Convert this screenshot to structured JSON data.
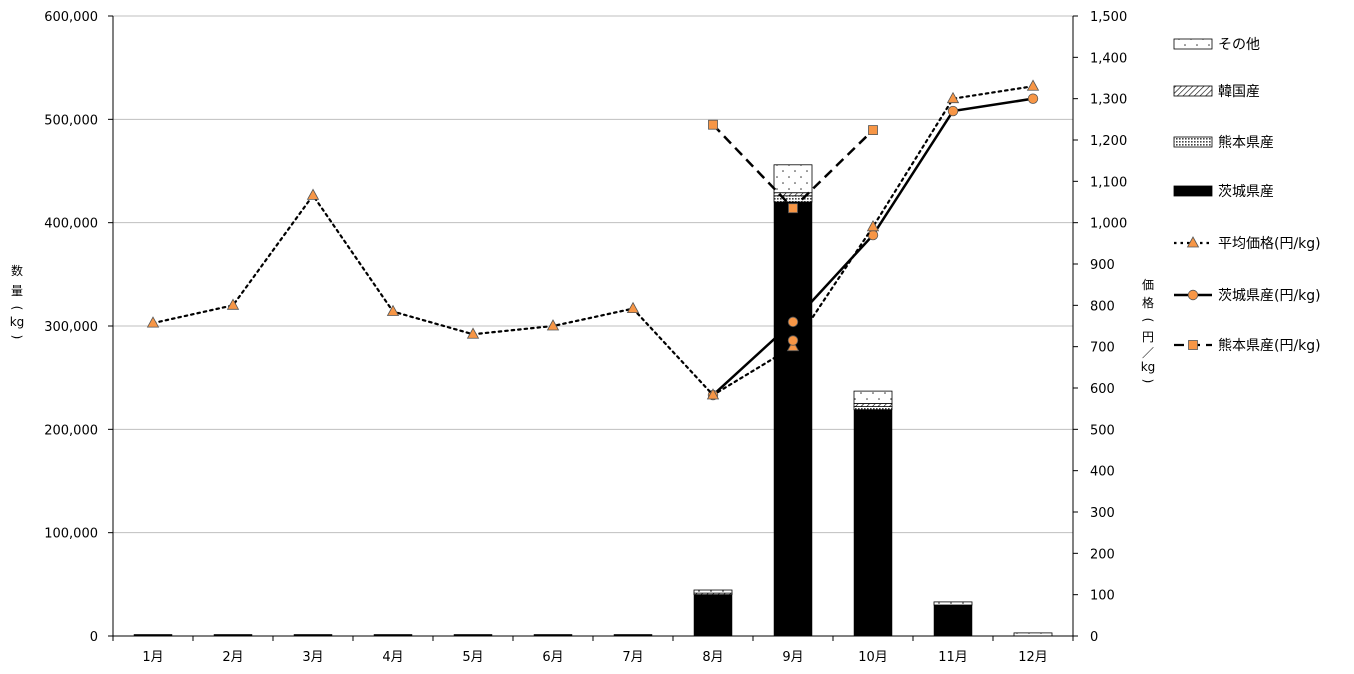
{
  "chart_data": {
    "type": "bar",
    "categories": [
      "1月",
      "2月",
      "3月",
      "4月",
      "5月",
      "6月",
      "7月",
      "8月",
      "9月",
      "10月",
      "11月",
      "12月"
    ],
    "y_left": {
      "label_chars": [
        "数",
        "量",
        "(",
        "kg",
        ")"
      ],
      "range": [
        0,
        600000
      ],
      "ticks": [
        0,
        100000,
        200000,
        300000,
        400000,
        500000,
        600000
      ],
      "tick_labels": [
        "0",
        "100,000",
        "200,000",
        "300,000",
        "400,000",
        "500,000",
        "600,000"
      ]
    },
    "y_right": {
      "label_chars": [
        "価",
        "格",
        "(",
        "円",
        "／",
        "kg",
        ")"
      ],
      "range": [
        0,
        1500
      ],
      "ticks": [
        0,
        100,
        200,
        300,
        400,
        500,
        600,
        700,
        800,
        900,
        1000,
        1100,
        1200,
        1300,
        1400,
        1500
      ],
      "tick_labels": [
        "0",
        "100",
        "200",
        "300",
        "400",
        "500",
        "600",
        "700",
        "800",
        "900",
        "1,000",
        "1,100",
        "1,200",
        "1,300",
        "1,400",
        "1,500"
      ]
    },
    "grid": true,
    "legend_position": "right",
    "bar_series": [
      {
        "name": "茨城県産",
        "pattern": "solid",
        "values": [
          1500,
          1500,
          1500,
          1500,
          1500,
          1500,
          1500,
          40000,
          420000,
          219000,
          30000,
          0
        ]
      },
      {
        "name": "熊本県産",
        "pattern": "dots",
        "values": [
          0,
          0,
          0,
          0,
          0,
          0,
          0,
          0,
          6000,
          3000,
          0,
          0
        ]
      },
      {
        "name": "韓国産",
        "pattern": "hatch",
        "values": [
          0,
          0,
          0,
          0,
          0,
          0,
          0,
          1500,
          3000,
          3000,
          0,
          0
        ]
      },
      {
        "name": "その他",
        "pattern": "sparse",
        "values": [
          0,
          0,
          0,
          0,
          0,
          0,
          0,
          3000,
          27000,
          12000,
          3000,
          3000
        ]
      }
    ],
    "line_series": [
      {
        "name": "平均価格(円/kg)",
        "style": "dotted",
        "marker": "triangle",
        "values": [
          757,
          800,
          1066,
          785,
          730,
          750,
          792,
          583,
          700,
          990,
          1300,
          1330
        ]
      },
      {
        "name": "茨城県産(円/kg)",
        "style": "solid",
        "marker": "circle",
        "values": [
          null,
          null,
          null,
          null,
          null,
          null,
          null,
          583,
          760,
          970,
          1270,
          1300
        ]
      },
      {
        "name": "熊本県産(円/kg)",
        "style": "dashed",
        "marker": "square",
        "values": [
          null,
          null,
          null,
          null,
          null,
          null,
          null,
          1237,
          1035,
          1224,
          null,
          null
        ]
      }
    ],
    "extra_markers": [
      {
        "series": "茨城県産(円/kg)",
        "month_index": 8,
        "value": 715
      }
    ],
    "legend_order": [
      "その他",
      "韓国産",
      "熊本県産",
      "茨城県産",
      "平均価格(円/kg)",
      "茨城県産(円/kg)",
      "熊本県産(円/kg)"
    ],
    "colors": {
      "bar_fill": "#000000",
      "marker_fill": "#f79646",
      "gridline": "#bfbfbf",
      "axis": "#000000"
    }
  }
}
